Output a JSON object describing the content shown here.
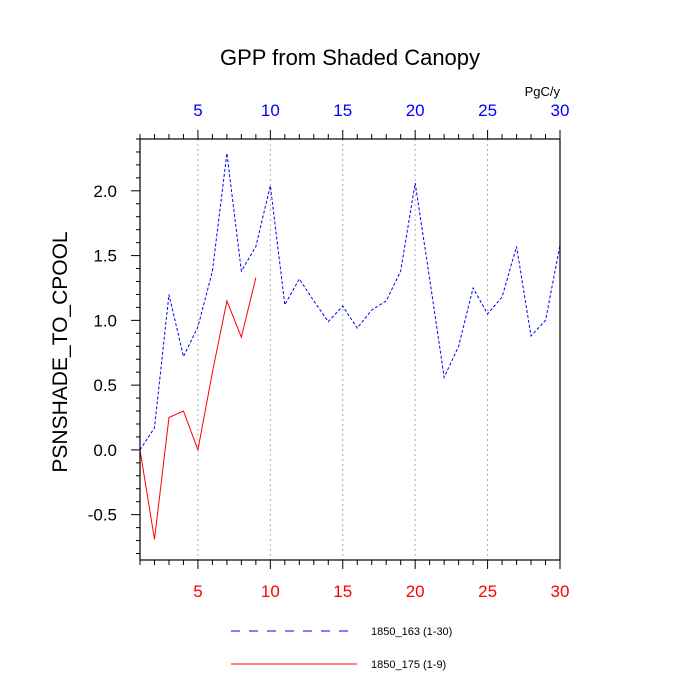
{
  "chart_data": {
    "type": "line",
    "title": "GPP from Shaded Canopy",
    "ylabel": "PSNSHADE_TO_CPOOL",
    "units_label": "PgC/y",
    "xlim": [
      1,
      30
    ],
    "ylim": [
      -0.85,
      2.4
    ],
    "x_ticks": [
      5,
      10,
      15,
      20,
      25,
      30
    ],
    "y_ticks": [
      -0.5,
      0.0,
      0.5,
      1.0,
      1.5,
      2.0
    ],
    "y_tick_labels": [
      "-0.5",
      "0.0",
      "0.5",
      "1.0",
      "1.5",
      "2.0"
    ],
    "grid": "vertical dotted at major x ticks",
    "legend_position": "bottom",
    "top_axis_color": "#0000ff",
    "bottom_axis_color": "#ff0000",
    "series": [
      {
        "name": "1850_163 (1-30)",
        "color": "#0000ff",
        "dash": "dashed",
        "x": [
          1,
          2,
          3,
          4,
          5,
          6,
          7,
          8,
          9,
          10,
          11,
          12,
          13,
          14,
          15,
          16,
          17,
          18,
          19,
          20,
          21,
          22,
          23,
          24,
          25,
          26,
          27,
          28,
          29,
          30
        ],
        "values": [
          0.0,
          0.17,
          1.2,
          0.72,
          0.95,
          1.38,
          2.29,
          1.38,
          1.57,
          2.04,
          1.12,
          1.32,
          1.15,
          0.99,
          1.11,
          0.94,
          1.08,
          1.15,
          1.38,
          2.06,
          1.32,
          0.56,
          0.8,
          1.25,
          1.05,
          1.18,
          1.57,
          0.88,
          1.0,
          1.58
        ]
      },
      {
        "name": "1850_175 (1-9)",
        "color": "#ff0000",
        "dash": "solid",
        "x": [
          1,
          2,
          3,
          4,
          5,
          6,
          7,
          8,
          9
        ],
        "values": [
          0.0,
          -0.69,
          0.25,
          0.3,
          0.0,
          0.6,
          1.15,
          0.87,
          1.33
        ]
      }
    ]
  }
}
